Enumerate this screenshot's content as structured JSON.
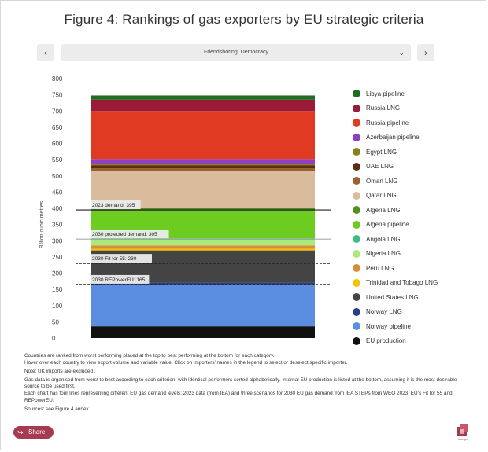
{
  "title": "Figure 4: Rankings of gas exporters by EU strategic criteria",
  "selector": {
    "value": "Friendshoring: Democracy",
    "prev_label": "‹",
    "next_label": "›",
    "chevron": "⌄"
  },
  "chart_data": {
    "type": "bar",
    "stacked": true,
    "ylabel": "Billion cubic metres",
    "ylim": [
      0,
      800
    ],
    "yticks": [
      0,
      50,
      100,
      150,
      200,
      250,
      300,
      350,
      400,
      450,
      500,
      550,
      600,
      650,
      700,
      750,
      800
    ],
    "segments_bottom_to_top": [
      {
        "name": "EU production",
        "value": 36,
        "color": "#111111"
      },
      {
        "name": "Norway pipeline",
        "value": 129,
        "color": "#5b8de0"
      },
      {
        "name": "Norway LNG",
        "value": 5,
        "color": "#2a3f8a"
      },
      {
        "name": "United States LNG",
        "value": 100,
        "color": "#444444"
      },
      {
        "name": "Trinidad and Tobago LNG",
        "value": 5,
        "color": "#f5c400"
      },
      {
        "name": "Peru LNG",
        "value": 10,
        "color": "#d98c3a"
      },
      {
        "name": "Nigeria LNG",
        "value": 18,
        "color": "#a9ea7a"
      },
      {
        "name": "Angola LNG",
        "value": 4,
        "color": "#3fbf7f"
      },
      {
        "name": "Algeria pipeline",
        "value": 83,
        "color": "#6ccc1f"
      },
      {
        "name": "Algeria LNG",
        "value": 12,
        "color": "#4f8f1f"
      },
      {
        "name": "Qatar LNG",
        "value": 113,
        "color": "#d8bc9c"
      },
      {
        "name": "Oman LNG",
        "value": 8,
        "color": "#9a6030"
      },
      {
        "name": "UAE LNG",
        "value": 10,
        "color": "#5a2e0e"
      },
      {
        "name": "Egypt LNG",
        "value": 5,
        "color": "#8a7f1f"
      },
      {
        "name": "Azerbaijan pipeline",
        "value": 14,
        "color": "#8e3fc2"
      },
      {
        "name": "Russia pipeline",
        "value": 148,
        "color": "#e03a22"
      },
      {
        "name": "Russia LNG",
        "value": 35,
        "color": "#9a1a3a"
      },
      {
        "name": "Libya pipeline",
        "value": 13,
        "color": "#1f6e1f"
      }
    ],
    "demand_lines": [
      {
        "label": "2023 demand: 395",
        "value": 395,
        "style": "solid",
        "color": "#222222"
      },
      {
        "label": "2030 projected demand: 305",
        "value": 305,
        "style": "solid",
        "color": "#aaaaaa"
      },
      {
        "label": "2030 Fit for 55: 230",
        "value": 230,
        "style": "dashed",
        "color": "#222222"
      },
      {
        "label": "2030 REPowerEU: 165",
        "value": 165,
        "style": "dashed",
        "color": "#222222"
      }
    ]
  },
  "legend_order": [
    "Libya pipeline",
    "Russia LNG",
    "Russia pipeline",
    "Azerbaijan pipeline",
    "Egypt LNG",
    "UAE LNG",
    "Oman LNG",
    "Qatar LNG",
    "Algeria LNG",
    "Algeria pipeline",
    "Angola LNG",
    "Nigeria LNG",
    "Peru LNG",
    "Trinidad and Tobago LNG",
    "United States LNG",
    "Norway LNG",
    "Norway pipeline",
    "EU production"
  ],
  "notes": {
    "line1": "Countries are ranked from worst performing placed at the top to best performing at the bottom for each category.",
    "line2": "Hover over each country to view export volume and variable value. Click on importers’ names in the legend to select or deselect specific importer.",
    "line3": "Note: UK imports are excluded .",
    "line4": "Gas data is organised from worst to best according to each criterion, with identical performers sorted alphabetically. Internal EU production is listed at the bottom, assuming it is the most desirable source to be used first.",
    "line5": "Each chart has four lines representing different EU gas demand levels: 2023 data (from IEA) and three scenarios for 2030 EU gas demand from IEA STEPs from WEO 2023, EU’s Fit for 55 and REPowerEU.",
    "line6": "Sources: see Figure 4 annex."
  },
  "share_label": "Share",
  "share_icon": "share-icon",
  "logo_icon": "bruegel-logo-icon",
  "logo_text": "bruegel"
}
